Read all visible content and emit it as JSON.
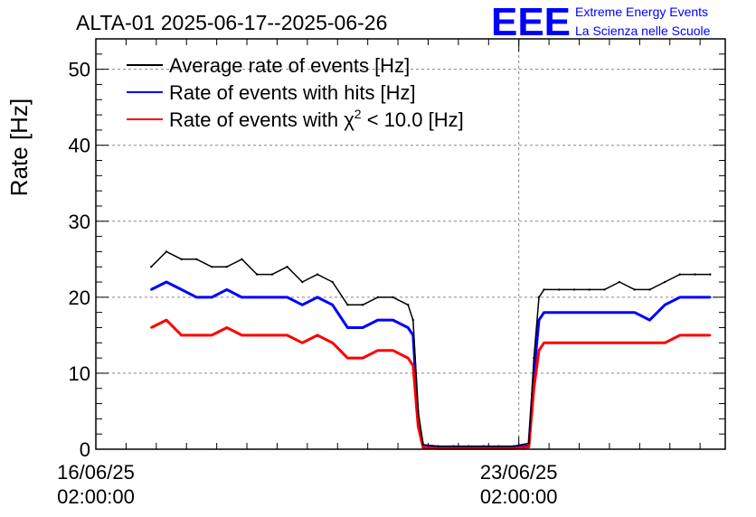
{
  "chart_data": {
    "type": "line",
    "title": "ALTA-01 2025-06-17--2025-06-26",
    "ylabel": "Rate [Hz]",
    "xlabel": "",
    "ylim": [
      0,
      54
    ],
    "xlim": [
      "2025-06-16T02:00:00",
      "2025-06-26T12:00:00"
    ],
    "y_ticks": [
      0,
      10,
      20,
      30,
      40,
      50
    ],
    "x_ticks": [
      {
        "date": "2025-06-16T02:00:00",
        "line1": "16/06/25",
        "line2": "02:00:00"
      },
      {
        "date": "2025-06-23T02:00:00",
        "line1": "23/06/25",
        "line2": "02:00:00"
      }
    ],
    "grid": true,
    "legend_position": "top-left",
    "legend": [
      {
        "label": "Average rate of events [Hz]",
        "color": "#000000"
      },
      {
        "label": "Rate of events with hits [Hz]",
        "color": "#0000ff"
      },
      {
        "label_prefix": "Rate of events with ",
        "label_symbol": "χ",
        "label_sup": "2",
        "label_suffix": " < 10.0 [Hz]",
        "color": "#ff0000"
      }
    ],
    "series": [
      {
        "name": "Average rate of events [Hz]",
        "color": "#000000",
        "x": [
          "2025-06-17T00:00:00",
          "2025-06-17T06:00:00",
          "2025-06-17T12:00:00",
          "2025-06-17T18:00:00",
          "2025-06-18T00:00:00",
          "2025-06-18T06:00:00",
          "2025-06-18T12:00:00",
          "2025-06-18T18:00:00",
          "2025-06-19T00:00:00",
          "2025-06-19T06:00:00",
          "2025-06-19T12:00:00",
          "2025-06-19T18:00:00",
          "2025-06-20T00:00:00",
          "2025-06-20T06:00:00",
          "2025-06-20T12:00:00",
          "2025-06-20T18:00:00",
          "2025-06-21T00:00:00",
          "2025-06-21T06:00:00",
          "2025-06-21T08:00:00",
          "2025-06-21T10:00:00",
          "2025-06-21T12:00:00",
          "2025-06-21T18:00:00",
          "2025-06-22T00:00:00",
          "2025-06-22T06:00:00",
          "2025-06-22T12:00:00",
          "2025-06-22T18:00:00",
          "2025-06-23T00:00:00",
          "2025-06-23T06:00:00",
          "2025-06-23T08:00:00",
          "2025-06-23T10:00:00",
          "2025-06-23T12:00:00",
          "2025-06-23T18:00:00",
          "2025-06-24T00:00:00",
          "2025-06-24T06:00:00",
          "2025-06-24T12:00:00",
          "2025-06-24T18:00:00",
          "2025-06-25T00:00:00",
          "2025-06-25T06:00:00",
          "2025-06-25T12:00:00",
          "2025-06-25T18:00:00",
          "2025-06-26T00:00:00",
          "2025-06-26T06:00:00"
        ],
        "values": [
          24,
          26,
          25,
          25,
          24,
          24,
          25,
          23,
          23,
          24,
          22,
          23,
          22,
          19,
          19,
          20,
          20,
          19,
          17,
          5,
          0.6,
          0.4,
          0.4,
          0.4,
          0.4,
          0.4,
          0.4,
          0.8,
          12,
          20,
          21,
          21,
          21,
          21,
          21,
          22,
          21,
          21,
          22,
          23,
          23,
          23
        ]
      },
      {
        "name": "Rate of events with hits [Hz]",
        "color": "#0000ff",
        "x": [
          "2025-06-17T00:00:00",
          "2025-06-17T06:00:00",
          "2025-06-17T12:00:00",
          "2025-06-17T18:00:00",
          "2025-06-18T00:00:00",
          "2025-06-18T06:00:00",
          "2025-06-18T12:00:00",
          "2025-06-18T18:00:00",
          "2025-06-19T00:00:00",
          "2025-06-19T06:00:00",
          "2025-06-19T12:00:00",
          "2025-06-19T18:00:00",
          "2025-06-20T00:00:00",
          "2025-06-20T06:00:00",
          "2025-06-20T12:00:00",
          "2025-06-20T18:00:00",
          "2025-06-21T00:00:00",
          "2025-06-21T06:00:00",
          "2025-06-21T08:00:00",
          "2025-06-21T10:00:00",
          "2025-06-21T12:00:00",
          "2025-06-21T18:00:00",
          "2025-06-22T00:00:00",
          "2025-06-22T06:00:00",
          "2025-06-22T12:00:00",
          "2025-06-22T18:00:00",
          "2025-06-23T00:00:00",
          "2025-06-23T06:00:00",
          "2025-06-23T08:00:00",
          "2025-06-23T10:00:00",
          "2025-06-23T12:00:00",
          "2025-06-23T18:00:00",
          "2025-06-24T00:00:00",
          "2025-06-24T06:00:00",
          "2025-06-24T12:00:00",
          "2025-06-24T18:00:00",
          "2025-06-25T00:00:00",
          "2025-06-25T06:00:00",
          "2025-06-25T12:00:00",
          "2025-06-25T18:00:00",
          "2025-06-26T00:00:00",
          "2025-06-26T06:00:00"
        ],
        "values": [
          21,
          22,
          21,
          20,
          20,
          21,
          20,
          20,
          20,
          20,
          19,
          20,
          19,
          16,
          16,
          17,
          17,
          16,
          15,
          4,
          0.3,
          0.2,
          0.2,
          0.2,
          0.2,
          0.2,
          0.2,
          0.5,
          10,
          17,
          18,
          18,
          18,
          18,
          18,
          18,
          18,
          17,
          19,
          20,
          20,
          20
        ]
      },
      {
        "name": "Rate of events with χ2 < 10.0 [Hz]",
        "color": "#ff0000",
        "x": [
          "2025-06-17T00:00:00",
          "2025-06-17T06:00:00",
          "2025-06-17T12:00:00",
          "2025-06-17T18:00:00",
          "2025-06-18T00:00:00",
          "2025-06-18T06:00:00",
          "2025-06-18T12:00:00",
          "2025-06-18T18:00:00",
          "2025-06-19T00:00:00",
          "2025-06-19T06:00:00",
          "2025-06-19T12:00:00",
          "2025-06-19T18:00:00",
          "2025-06-20T00:00:00",
          "2025-06-20T06:00:00",
          "2025-06-20T12:00:00",
          "2025-06-20T18:00:00",
          "2025-06-21T00:00:00",
          "2025-06-21T06:00:00",
          "2025-06-21T08:00:00",
          "2025-06-21T10:00:00",
          "2025-06-21T12:00:00",
          "2025-06-21T18:00:00",
          "2025-06-22T00:00:00",
          "2025-06-22T06:00:00",
          "2025-06-22T12:00:00",
          "2025-06-22T18:00:00",
          "2025-06-23T00:00:00",
          "2025-06-23T06:00:00",
          "2025-06-23T08:00:00",
          "2025-06-23T10:00:00",
          "2025-06-23T12:00:00",
          "2025-06-23T18:00:00",
          "2025-06-24T00:00:00",
          "2025-06-24T06:00:00",
          "2025-06-24T12:00:00",
          "2025-06-24T18:00:00",
          "2025-06-25T00:00:00",
          "2025-06-25T06:00:00",
          "2025-06-25T12:00:00",
          "2025-06-25T18:00:00",
          "2025-06-26T00:00:00",
          "2025-06-26T06:00:00"
        ],
        "values": [
          16,
          17,
          15,
          15,
          15,
          16,
          15,
          15,
          15,
          15,
          14,
          15,
          14,
          12,
          12,
          13,
          13,
          12,
          11,
          3,
          0.2,
          0.1,
          0.1,
          0.1,
          0.1,
          0.1,
          0.1,
          0.3,
          8,
          13,
          14,
          14,
          14,
          14,
          14,
          14,
          14,
          14,
          14,
          15,
          15,
          15
        ]
      }
    ]
  },
  "logo": {
    "mark": "EEE",
    "line1": "Extreme Energy Events",
    "line2": "La Scienza nelle Scuole",
    "color": "#0000ff"
  }
}
